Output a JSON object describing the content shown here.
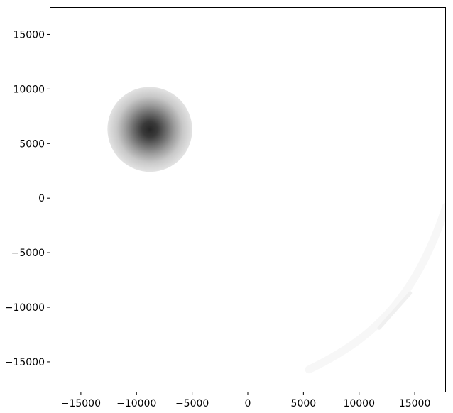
{
  "chart_data": {
    "type": "heatmap",
    "title": "",
    "xlabel": "",
    "ylabel": "",
    "xlim": [
      -17800,
      17800
    ],
    "ylim": [
      -17800,
      17500
    ],
    "grid": false,
    "colormap": "gray_r",
    "x_ticks": [
      -15000,
      -10000,
      -5000,
      0,
      5000,
      10000,
      15000
    ],
    "y_ticks": [
      -15000,
      -10000,
      -5000,
      0,
      5000,
      10000,
      15000
    ],
    "x_tick_labels": [
      "−15000",
      "−10000",
      "−5000",
      "0",
      "5000",
      "10000",
      "15000"
    ],
    "y_tick_labels": [
      "−15000",
      "−10000",
      "−5000",
      "0",
      "5000",
      "10000",
      "15000"
    ],
    "features": [
      {
        "name": "dense blob",
        "shape": "ellipse",
        "center": [
          -8800,
          6300
        ],
        "radius_x": 3800,
        "radius_y": 3900,
        "rotation_deg": -35,
        "peak_intensity": 0.85,
        "threshold_intensity": 0.12
      },
      {
        "name": "faint arc",
        "shape": "arc",
        "points": [
          [
            5500,
            -15700
          ],
          [
            11000,
            -13000
          ],
          [
            15000,
            -9500
          ],
          [
            17800,
            -800
          ]
        ],
        "peak_intensity": 0.03
      },
      {
        "name": "faint streak",
        "shape": "line",
        "points": [
          [
            11800,
            -11900
          ],
          [
            14600,
            -8700
          ]
        ],
        "peak_intensity": 0.06
      }
    ]
  }
}
